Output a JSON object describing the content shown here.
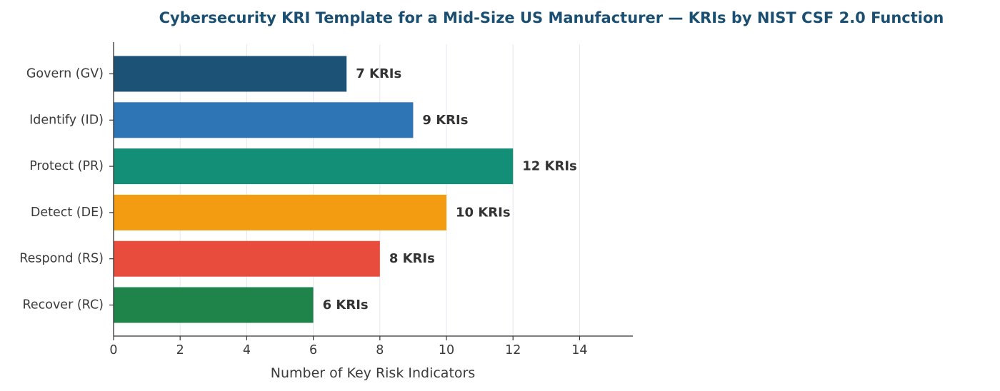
{
  "chart_data": {
    "type": "bar",
    "orientation": "horizontal",
    "title": "Cybersecurity KRI Template for a Mid-Size US Manufacturer — KRIs by NIST CSF 2.0 Function",
    "xlabel": "Number of Key Risk Indicators",
    "ylabel": "",
    "categories": [
      "Govern (GV)",
      "Identify (ID)",
      "Protect (PR)",
      "Detect (DE)",
      "Respond (RS)",
      "Recover (RC)"
    ],
    "values": [
      7,
      9,
      12,
      10,
      8,
      6
    ],
    "data_labels": [
      "7 KRIs",
      "9 KRIs",
      "12 KRIs",
      "10 KRIs",
      "8 KRIs",
      "6 KRIs"
    ],
    "colors": [
      "#1b5276",
      "#2e75b6",
      "#148f77",
      "#f39c12",
      "#e74c3c",
      "#1e8449"
    ],
    "xlim": [
      0,
      15.6
    ],
    "xticks": [
      0,
      2,
      4,
      6,
      8,
      10,
      12,
      14
    ],
    "grid": "vertical",
    "legend": "none"
  },
  "style": {
    "title_color": "#1b4f72",
    "grid_color": "#e6e6ef",
    "axis_color": "#333333"
  }
}
